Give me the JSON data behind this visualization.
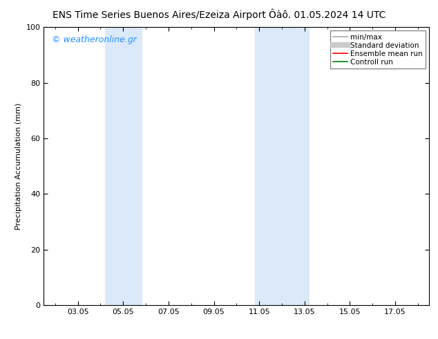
{
  "title_left": "ENS Time Series Buenos Aires/Ezeiza Airport",
  "title_right": "Ôàô. 01.05.2024 14 UTC",
  "ylabel": "Precipitation Accumulation (mm)",
  "watermark": "© weatheronline.gr",
  "watermark_color": "#1e90ff",
  "ylim": [
    0,
    100
  ],
  "xlim": [
    1.5,
    18.5
  ],
  "x_positions": [
    3,
    5,
    7,
    9,
    11,
    13,
    15,
    17
  ],
  "x_tick_labels": [
    "03.05",
    "05.05",
    "07.05",
    "09.05",
    "11.05",
    "13.05",
    "15.05",
    "17.05"
  ],
  "yticks": [
    0,
    20,
    40,
    60,
    80,
    100
  ],
  "background_color": "#ffffff",
  "plot_bg_color": "#ffffff",
  "band_positions": [
    {
      "x_start": 4.2,
      "x_end": 5.8,
      "color": "#dce9f8"
    },
    {
      "x_start": 10.8,
      "x_end": 13.2,
      "color": "#dce9f8"
    }
  ],
  "legend_items": [
    {
      "label": "min/max",
      "color": "#aaaaaa",
      "linewidth": 1.2,
      "linestyle": "-"
    },
    {
      "label": "Standard deviation",
      "color": "#cccccc",
      "linewidth": 6,
      "linestyle": "-"
    },
    {
      "label": "Ensemble mean run",
      "color": "#ff0000",
      "linewidth": 1.2,
      "linestyle": "-"
    },
    {
      "label": "Controll run",
      "color": "#008000",
      "linewidth": 1.2,
      "linestyle": "-"
    }
  ],
  "title_fontsize": 10,
  "axis_label_fontsize": 8,
  "tick_fontsize": 8,
  "legend_fontsize": 7.5,
  "watermark_fontsize": 9
}
